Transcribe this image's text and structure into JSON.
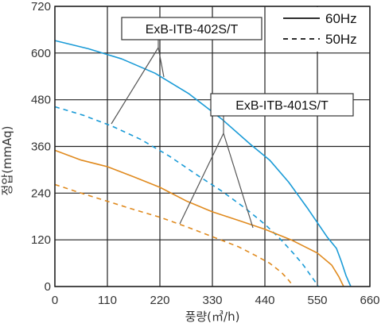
{
  "chart_data": {
    "type": "line",
    "xlabel": "풍량(㎥/h)",
    "ylabel": "정압(mmAq)",
    "xlim": [
      0,
      660
    ],
    "ylim": [
      0,
      720
    ],
    "xticks": [
      0,
      110,
      220,
      330,
      440,
      550,
      660
    ],
    "yticks": [
      0,
      120,
      240,
      360,
      480,
      600,
      720
    ],
    "grid": true,
    "legend_position": "top-right",
    "legend": [
      {
        "label": "60Hz",
        "style": "solid"
      },
      {
        "label": "50Hz",
        "style": "dashed"
      }
    ],
    "annotations": [
      "ExB-ITB-402S/T",
      "ExB-ITB-401S/T"
    ],
    "series": [
      {
        "model": "ExB-ITB-402S/T",
        "frequency": "60Hz",
        "color": "#1a9bd7",
        "style": "solid",
        "x": [
          0,
          70,
          140,
          210,
          280,
          350,
          410,
          450,
          490,
          530,
          570,
          590,
          600,
          610,
          620
        ],
        "y": [
          632,
          611,
          585,
          548,
          496,
          430,
          365,
          325,
          268,
          200,
          128,
          98,
          65,
          28,
          0
        ]
      },
      {
        "model": "ExB-ITB-402S/T",
        "frequency": "50Hz",
        "color": "#1a9bd7",
        "style": "dashed",
        "x": [
          0,
          60,
          120,
          180,
          240,
          300,
          350,
          400,
          440,
          470,
          500,
          520,
          535,
          548,
          552
        ],
        "y": [
          462,
          440,
          412,
          378,
          335,
          285,
          245,
          200,
          160,
          125,
          85,
          56,
          30,
          8,
          0
        ]
      },
      {
        "model": "ExB-ITB-401S/T",
        "frequency": "60Hz",
        "color": "#e08a1e",
        "style": "solid",
        "x": [
          0,
          55,
          110,
          165,
          220,
          275,
          330,
          385,
          440,
          495,
          550,
          580,
          595,
          605
        ],
        "y": [
          350,
          325,
          308,
          282,
          255,
          220,
          192,
          170,
          147,
          120,
          86,
          55,
          25,
          0
        ]
      },
      {
        "model": "ExB-ITB-401S/T",
        "frequency": "50Hz",
        "color": "#e08a1e",
        "style": "dashed",
        "x": [
          0,
          55,
          110,
          165,
          220,
          275,
          330,
          385,
          420,
          450,
          475,
          490,
          500
        ],
        "y": [
          262,
          240,
          219,
          198,
          178,
          154,
          128,
          102,
          80,
          60,
          36,
          16,
          0
        ]
      }
    ]
  }
}
